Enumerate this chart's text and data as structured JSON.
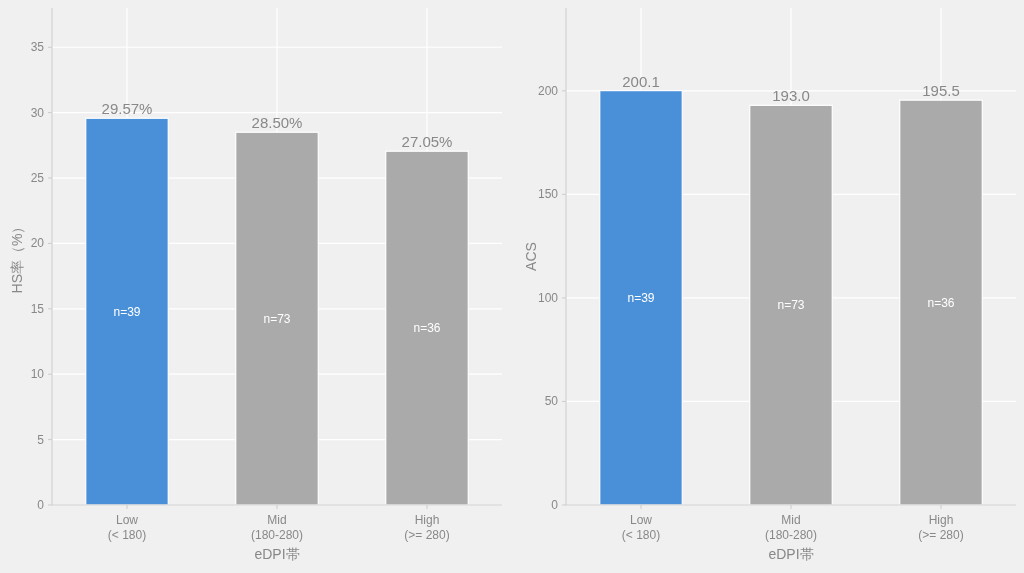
{
  "chart_data": [
    {
      "type": "bar",
      "categories": [
        "Low\n(< 180)",
        "Mid\n(180-280)",
        "High\n(>= 280)"
      ],
      "values": [
        29.57,
        28.5,
        27.05
      ],
      "value_labels": [
        "29.57%",
        "28.50%",
        "27.05%"
      ],
      "colors": [
        "#4a90d9",
        "#aaaaaa",
        "#aaaaaa"
      ],
      "xlabel": "eDPI帯",
      "ylabel": "HS率（%）",
      "ylim": [
        0,
        38
      ],
      "yticks": [
        0,
        5,
        10,
        15,
        20,
        25,
        30,
        35
      ],
      "grid": true,
      "annotations": [
        "n=39",
        "n=73",
        "n=36"
      ]
    },
    {
      "type": "bar",
      "categories": [
        "Low\n(< 180)",
        "Mid\n(180-280)",
        "High\n(>= 280)"
      ],
      "values": [
        200.1,
        193.0,
        195.5
      ],
      "value_labels": [
        "200.1",
        "193.0",
        "195.5"
      ],
      "colors": [
        "#4a90d9",
        "#aaaaaa",
        "#aaaaaa"
      ],
      "xlabel": "eDPI帯",
      "ylabel": "ACS",
      "ylim": [
        0,
        240
      ],
      "yticks": [
        0,
        50,
        100,
        150,
        200
      ],
      "grid": true,
      "annotations": [
        "n=39",
        "n=73",
        "n=36"
      ]
    }
  ]
}
